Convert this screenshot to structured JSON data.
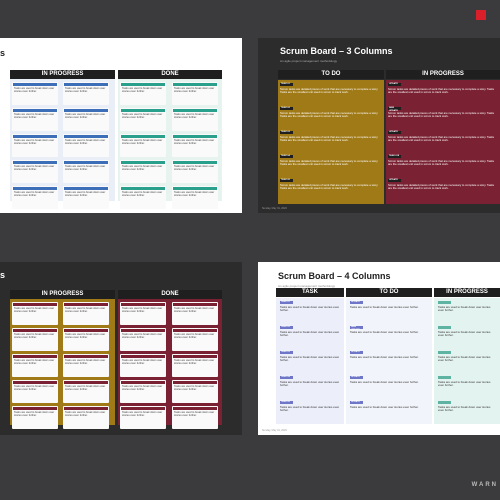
{
  "watermark": "WARN",
  "card_text": "Tasks are used to break down user stories even further.",
  "row_text": "Scrum tasks are detailed pieces of work that are necessary to complete a story. Tasks are the smallest unit used in scrum to track work.",
  "slide1": {
    "title": "s",
    "headers": [
      "IN PROGRESS",
      "DONE"
    ]
  },
  "slide2": {
    "title": "Scrum Board – 3 Columns",
    "subtitle": "An agile project management methodology",
    "headers": [
      "TO DO",
      "IN PROGRESS"
    ],
    "rows": [
      "TASK #1",
      "TASK #2",
      "TASK #3",
      "TASK #4",
      "TASK #5"
    ],
    "updates": [
      "UPDATE",
      "NEW UPDATE",
      "UPDATE",
      "TASK #18",
      "UPDATE"
    ],
    "footer": "Sunday, May 31, 2020"
  },
  "slide3": {
    "title": "s",
    "headers": [
      "IN PROGRESS",
      "DONE"
    ]
  },
  "slide4": {
    "title": "Scrum Board – 4 Columns",
    "subtitle": "An agile project management methodology",
    "headers": [
      "TASK",
      "TO DO",
      "IN PROGRESS"
    ],
    "tags": [
      "TASK #1",
      "TASK #2",
      "TASK #3",
      "TASK #4",
      "TASK #5"
    ],
    "todo_tags": [
      "UPDATE",
      "NEW UPDATE",
      "UPDATE",
      "UPDATE",
      "UPDATE"
    ],
    "footer": "Sunday, May 31, 2020"
  },
  "colors": {
    "blue": "#3d6fb8",
    "teal": "#29a08c",
    "gold": "#a07a16",
    "maroon": "#7a2233",
    "periwinkle": "#6e76c8",
    "mint": "#5fb3a3"
  }
}
